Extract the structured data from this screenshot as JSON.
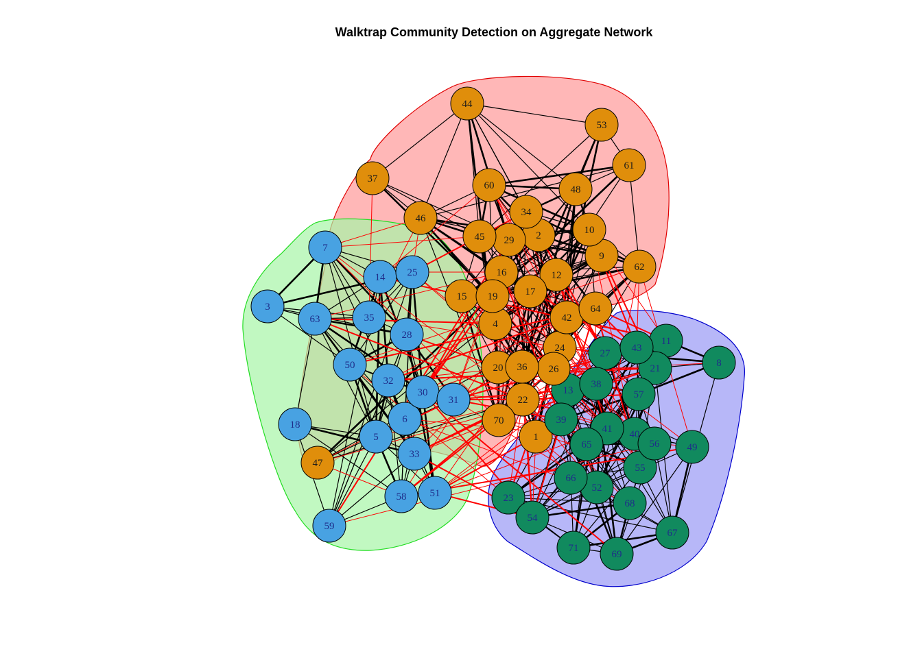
{
  "title": "Walktrap Community Detection on Aggregate Network",
  "colors": {
    "orange_node": "#E08E0B",
    "blue_node": "#48A2E2",
    "green_node": "#118A5E",
    "orange_label": "#1a1a1a",
    "blue_label": "#1f2d8a",
    "green_label": "#1f2d8a",
    "hull_red_fill": "#FF9999",
    "hull_red_stroke": "#E00000",
    "hull_green_fill": "#A6F5A6",
    "hull_green_stroke": "#22DD22",
    "hull_blue_fill": "#9999F5",
    "hull_blue_stroke": "#0000CC",
    "edge_intra": "#000000",
    "edge_inter": "#FF0000"
  },
  "communities": [
    {
      "name": "orange",
      "hull": "red",
      "nodes": [
        44,
        53,
        61,
        37,
        60,
        48,
        46,
        34,
        10,
        45,
        29,
        2,
        9,
        62,
        16,
        12,
        17,
        15,
        19,
        64,
        42,
        4,
        24,
        20,
        36,
        26,
        22,
        70,
        1,
        47
      ]
    },
    {
      "name": "blue",
      "hull": "green",
      "nodes": [
        7,
        14,
        25,
        3,
        63,
        35,
        28,
        50,
        32,
        30,
        31,
        6,
        18,
        5,
        33,
        58,
        51,
        59
      ]
    },
    {
      "name": "green",
      "hull": "blue",
      "nodes": [
        11,
        27,
        43,
        8,
        21,
        38,
        13,
        57,
        39,
        41,
        40,
        56,
        49,
        65,
        55,
        66,
        52,
        68,
        23,
        54,
        67,
        71,
        69
      ]
    }
  ]
}
